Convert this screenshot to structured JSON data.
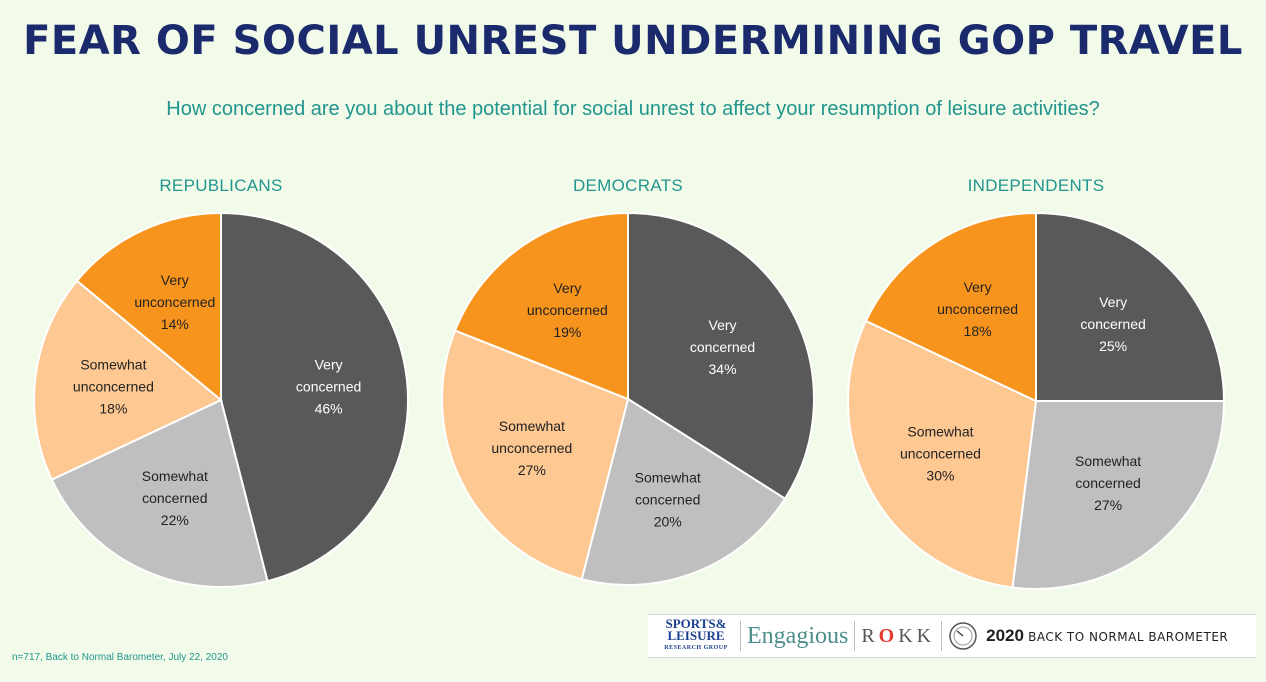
{
  "title": "FEAR OF SOCIAL UNREST UNDERMINING GOP TRAVEL",
  "subtitle": "How concerned are you about the potential for social unrest to affect your resumption of leisure activities?",
  "footnote": "n=717, Back to Normal Barometer, July 22, 2020",
  "logos": {
    "sports_top": "SPORTS&",
    "sports_mid": "LEISURE",
    "sports_small": "RESEARCH GROUP",
    "engagious": "Engagious",
    "rokk_r": "R",
    "rokk_o": "O",
    "rokk_kk": "KK",
    "barometer_year": "2020",
    "barometer_text": "BACK TO NORMAL BAROMETER"
  },
  "colors": {
    "very_concerned": "#595959",
    "somewhat_concerned": "#bfbfbf",
    "somewhat_unconcerned": "#fdc892",
    "very_unconcerned": "#f7941d"
  },
  "chart_data": [
    {
      "type": "pie",
      "title": "REPUBLICANS",
      "slices": [
        {
          "label": [
            "Very",
            "concerned"
          ],
          "value": 46,
          "text": "46%"
        },
        {
          "label": [
            "Somewhat",
            "concerned"
          ],
          "value": 22,
          "text": "22%"
        },
        {
          "label": [
            "Somewhat",
            "unconcerned"
          ],
          "value": 18,
          "text": "18%"
        },
        {
          "label": [
            "Very",
            "unconcerned"
          ],
          "value": 14,
          "text": "14%"
        }
      ]
    },
    {
      "type": "pie",
      "title": "DEMOCRATS",
      "slices": [
        {
          "label": [
            "Very",
            "concerned"
          ],
          "value": 34,
          "text": "34%"
        },
        {
          "label": [
            "Somewhat",
            "concerned"
          ],
          "value": 20,
          "text": "20%"
        },
        {
          "label": [
            "Somewhat",
            "unconcerned"
          ],
          "value": 27,
          "text": "27%"
        },
        {
          "label": [
            "Very",
            "unconcerned"
          ],
          "value": 19,
          "text": "19%"
        }
      ]
    },
    {
      "type": "pie",
      "title": "INDEPENDENTS",
      "slices": [
        {
          "label": [
            "Very",
            "concerned"
          ],
          "value": 25,
          "text": "25%"
        },
        {
          "label": [
            "Somewhat",
            "concerned"
          ],
          "value": 27,
          "text": "27%"
        },
        {
          "label": [
            "Somewhat",
            "unconcerned"
          ],
          "value": 30,
          "text": "30%"
        },
        {
          "label": [
            "Very",
            "unconcerned"
          ],
          "value": 18,
          "text": "18%"
        }
      ]
    }
  ]
}
